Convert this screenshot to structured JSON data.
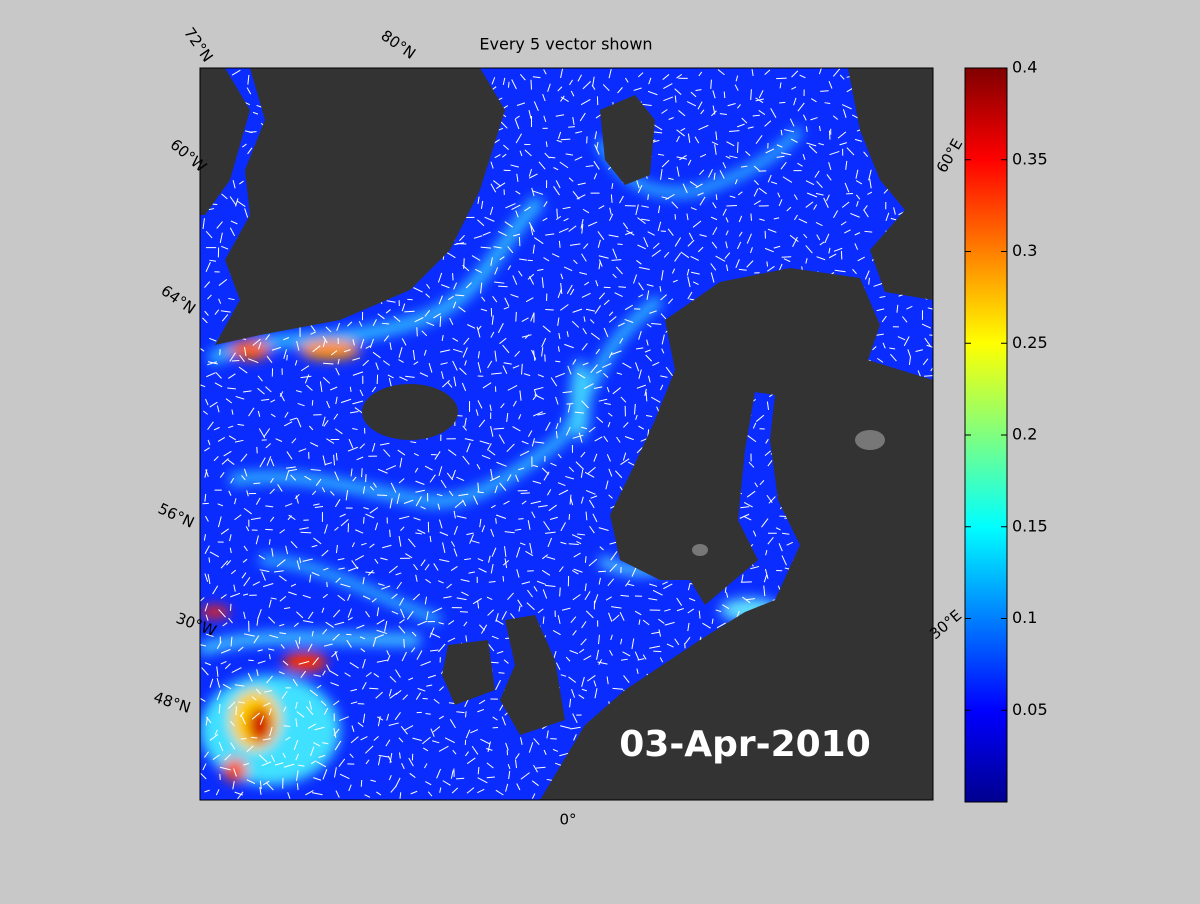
{
  "title": "Every 5 vector shown",
  "date": "03-Apr-2010",
  "graticule_labels": [
    "72°N",
    "80°N",
    "60°W",
    "64°N",
    "56°N",
    "30°W",
    "48°N",
    "0°",
    "60°E",
    "30°E"
  ],
  "colorbar": {
    "lim": [
      0,
      0.4
    ],
    "ticks": [
      0.05,
      0.1,
      0.15,
      0.2,
      0.25,
      0.3,
      0.35,
      0.4
    ]
  }
}
